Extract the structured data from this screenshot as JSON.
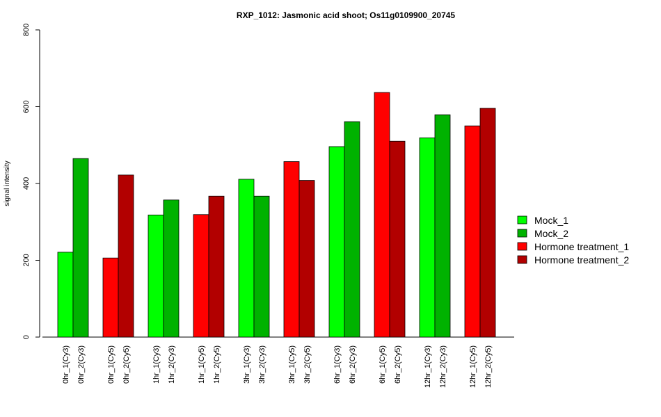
{
  "chart_data": {
    "type": "bar",
    "title": "RXP_1012: Jasmonic acid shoot; Os11g0109900_20745",
    "xlabel": "",
    "ylabel": "signal intensity",
    "ylim": [
      0,
      800
    ],
    "yticks": [
      0,
      200,
      400,
      600,
      800
    ],
    "categories": [
      "0hr_1(Cy3)",
      "0hr_2(Cy3)",
      "0hr_1(Cy5)",
      "0hr_2(Cy5)",
      "1hr_1(Cy3)",
      "1hr_2(Cy3)",
      "1hr_1(Cy5)",
      "1hr_2(Cy5)",
      "3hr_1(Cy3)",
      "3hr_2(Cy3)",
      "3hr_1(Cy5)",
      "3hr_2(Cy5)",
      "6hr_1(Cy3)",
      "6hr_2(Cy3)",
      "6hr_1(Cy5)",
      "6hr_2(Cy5)",
      "12hr_1(Cy3)",
      "12hr_2(Cy3)",
      "12hr_1(Cy5)",
      "12hr_2(Cy5)"
    ],
    "values": [
      221,
      465,
      206,
      422,
      318,
      357,
      319,
      367,
      411,
      367,
      457,
      408,
      496,
      561,
      637,
      510,
      519,
      579,
      550,
      596
    ],
    "bar_series": [
      0,
      1,
      2,
      3,
      0,
      1,
      2,
      3,
      0,
      1,
      2,
      3,
      0,
      1,
      2,
      3,
      0,
      1,
      2,
      3
    ],
    "series": [
      {
        "name": "Mock_1",
        "color": "#00ff00"
      },
      {
        "name": "Mock_2",
        "color": "#00b200"
      },
      {
        "name": "Hormone treatment_1",
        "color": "#ff0000"
      },
      {
        "name": "Hormone treatment_2",
        "color": "#b20000"
      }
    ],
    "grid": false,
    "legend_position": "right"
  }
}
